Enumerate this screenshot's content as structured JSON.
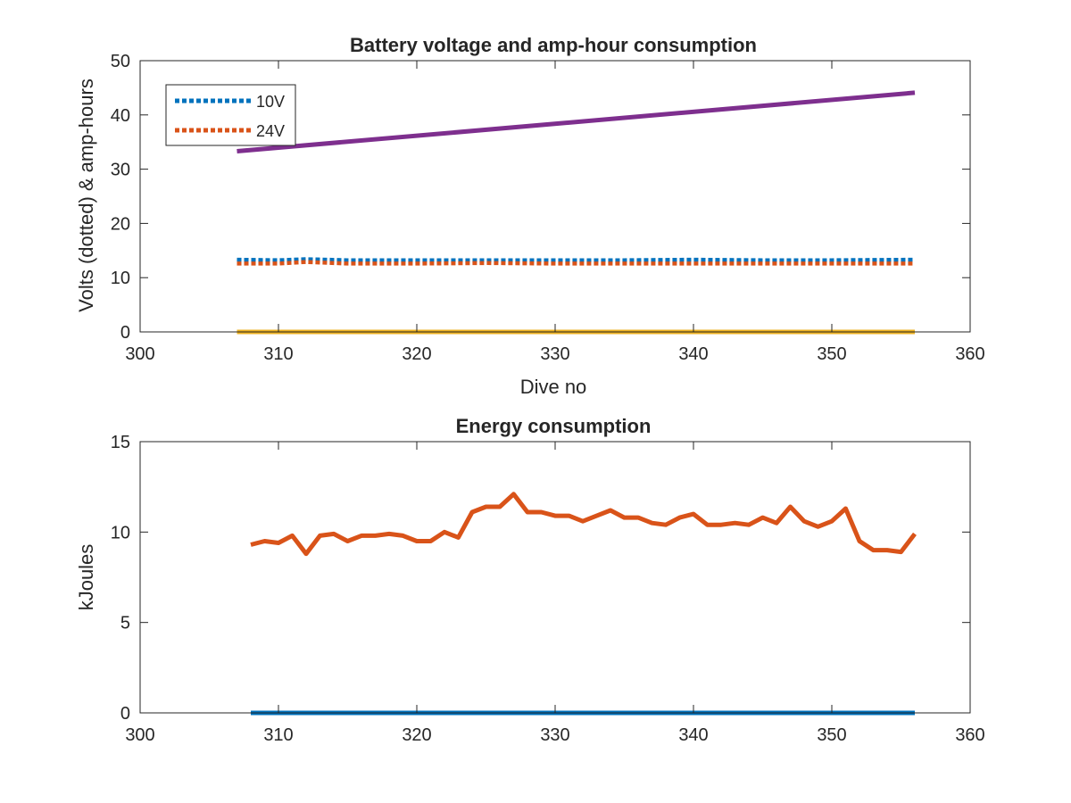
{
  "chart_data": [
    {
      "type": "line",
      "title": "Battery voltage and amp-hour consumption",
      "xlabel": "Dive no",
      "ylabel": "Volts (dotted) & amp-hours",
      "xlim": [
        300,
        360
      ],
      "ylim": [
        0,
        50
      ],
      "xticks": [
        300,
        310,
        320,
        330,
        340,
        350,
        360
      ],
      "yticks": [
        0,
        10,
        20,
        30,
        40,
        50
      ],
      "grid": false,
      "legend": "top-left",
      "series": [
        {
          "name": "10V",
          "color": "#0072BD",
          "style": "dotted",
          "x": [
            307,
            310,
            312,
            315,
            320,
            325,
            330,
            335,
            340,
            345,
            350,
            356
          ],
          "y": [
            13.3,
            13.2,
            13.4,
            13.2,
            13.2,
            13.2,
            13.2,
            13.2,
            13.3,
            13.2,
            13.2,
            13.3
          ]
        },
        {
          "name": "24V",
          "color": "#D95319",
          "style": "dotted",
          "x": [
            307,
            310,
            312,
            315,
            320,
            325,
            330,
            335,
            340,
            345,
            350,
            356
          ],
          "y": [
            12.6,
            12.6,
            12.9,
            12.6,
            12.6,
            12.7,
            12.6,
            12.6,
            12.6,
            12.6,
            12.6,
            12.6
          ]
        },
        {
          "color": "#EDB120",
          "style": "solid",
          "x": [
            307,
            356
          ],
          "y": [
            0,
            0
          ]
        },
        {
          "color": "#7E2F8E",
          "style": "solid",
          "x": [
            307,
            356
          ],
          "y": [
            33.3,
            44.1
          ]
        }
      ]
    },
    {
      "type": "line",
      "title": "Energy consumption",
      "xlabel": "",
      "ylabel": "kJoules",
      "xlim": [
        300,
        360
      ],
      "ylim": [
        0,
        15
      ],
      "xticks": [
        300,
        310,
        320,
        330,
        340,
        350,
        360
      ],
      "yticks": [
        0,
        5,
        10,
        15
      ],
      "grid": false,
      "series": [
        {
          "color": "#0072BD",
          "style": "solid",
          "x": [
            308,
            356
          ],
          "y": [
            0,
            0
          ]
        },
        {
          "color": "#D95319",
          "style": "solid",
          "x": [
            308,
            309,
            310,
            311,
            312,
            313,
            314,
            315,
            316,
            317,
            318,
            319,
            320,
            321,
            322,
            323,
            324,
            325,
            326,
            327,
            328,
            329,
            330,
            331,
            332,
            333,
            334,
            335,
            336,
            337,
            338,
            339,
            340,
            341,
            342,
            343,
            344,
            345,
            346,
            347,
            348,
            349,
            350,
            351,
            352,
            353,
            354,
            355,
            356
          ],
          "y": [
            9.3,
            9.5,
            9.4,
            9.8,
            8.8,
            9.8,
            9.9,
            9.5,
            9.8,
            9.8,
            9.9,
            9.8,
            9.5,
            9.5,
            10.0,
            9.7,
            11.1,
            11.4,
            11.4,
            12.1,
            11.1,
            11.1,
            10.9,
            10.9,
            10.6,
            10.9,
            11.2,
            10.8,
            10.8,
            10.5,
            10.4,
            10.8,
            11.0,
            10.4,
            10.4,
            10.5,
            10.4,
            10.8,
            10.5,
            11.4,
            10.6,
            10.3,
            10.6,
            11.3,
            9.5,
            9.0,
            9.0,
            8.9,
            9.9
          ]
        }
      ]
    }
  ]
}
